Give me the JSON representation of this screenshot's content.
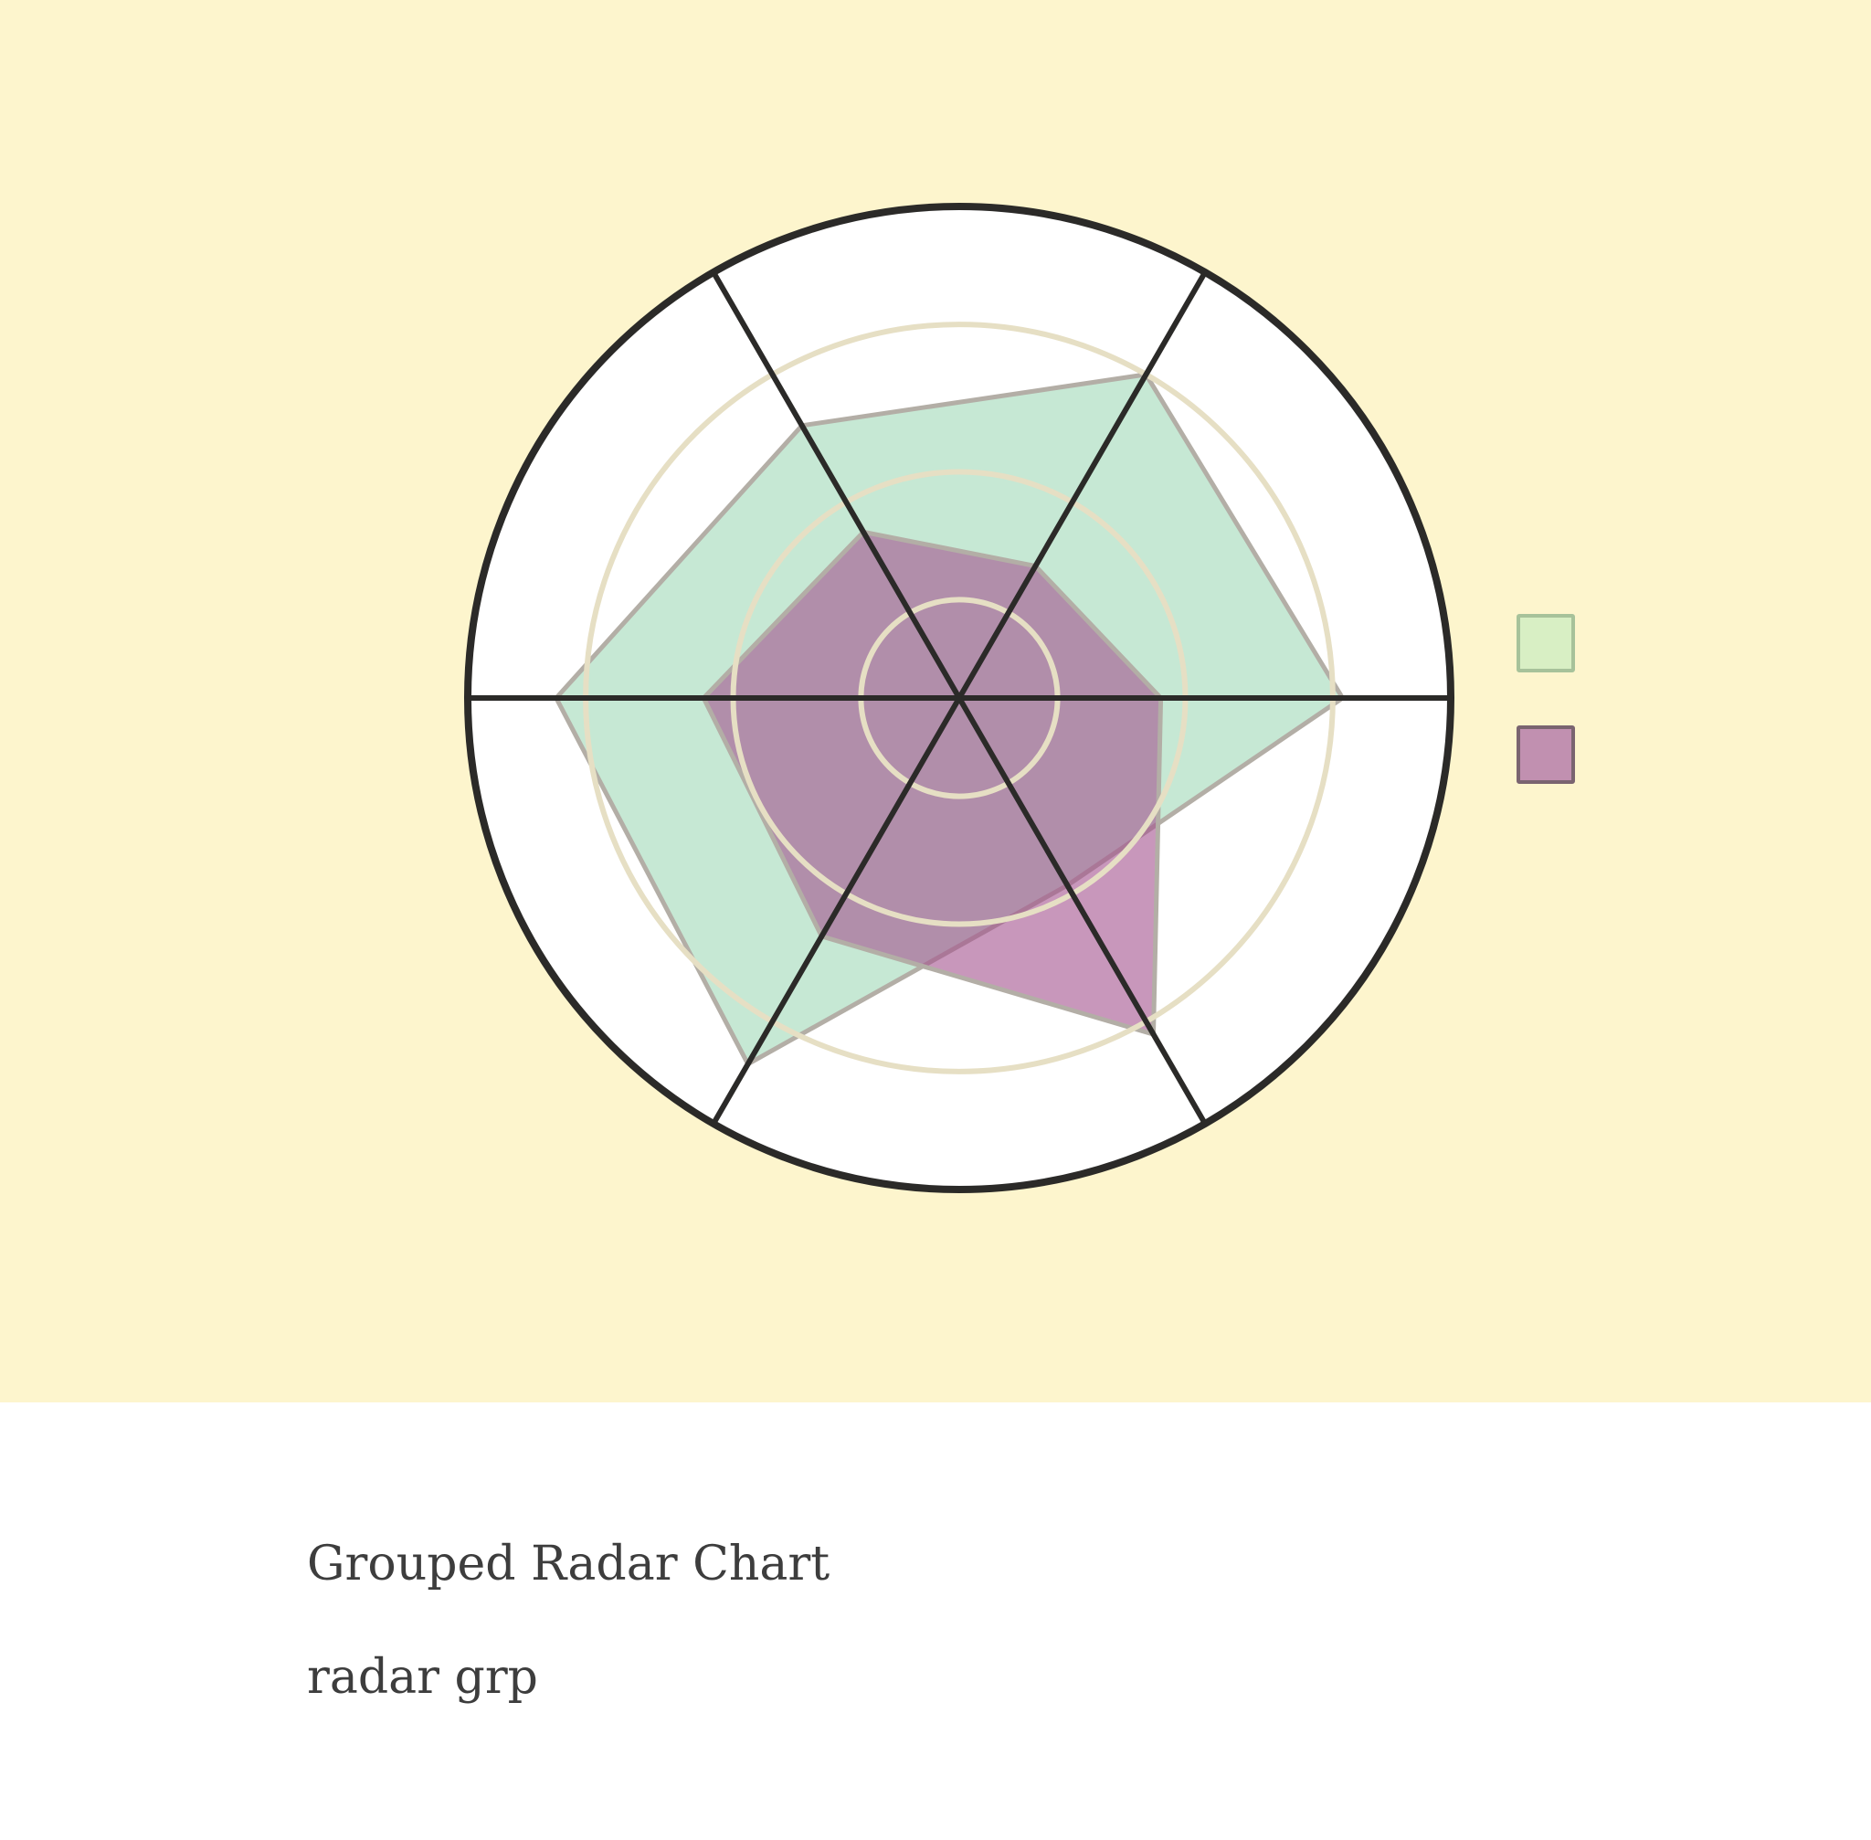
{
  "caption": {
    "title": "Grouped Radar Chart",
    "subtitle": "radar grp"
  },
  "colors": {
    "panel_background": "#fdf5cd",
    "plot_background": "#ffffff",
    "outer_ring": "#2b2a28",
    "spokes": "#2b2a28",
    "grid_rings": "#e6dfc4",
    "series_outline": "#b3aea6"
  },
  "chart_data": {
    "type": "radar",
    "title": "",
    "axes_count": 6,
    "rmax": 1.0,
    "grid_levels": [
      0.2,
      0.46,
      0.76
    ],
    "grid": true,
    "legend_position": "right",
    "series": [
      {
        "values": [
          0.76,
          0.78,
          0.44,
          0.86,
          0.82,
          0.64
        ],
        "fill": "#a8dcbd",
        "legend_swatch": "#d8efc4",
        "legend_border": "#a7c29a"
      },
      {
        "values": [
          0.31,
          0.41,
          0.79,
          0.56,
          0.52,
          0.39
        ],
        "fill": "#a3528e",
        "legend_swatch": "#c190b0",
        "legend_border": "#7a6470"
      }
    ]
  }
}
